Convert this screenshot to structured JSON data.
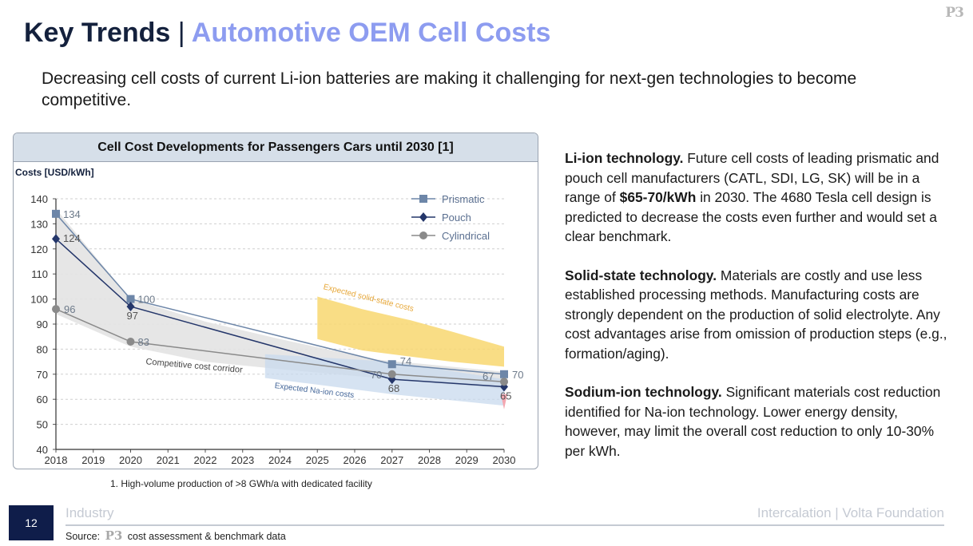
{
  "logo": "P3",
  "header": {
    "title_main": "Key Trends",
    "separator": "|",
    "title_accent": "Automotive OEM Cell Costs",
    "subtitle": "Decreasing cell costs of current Li-ion batteries are making it challenging for next-gen technologies to become competitive."
  },
  "chart_data": {
    "type": "line",
    "title": "Cell Cost Developments for Passengers Cars until 2030 [1]",
    "ylabel": "Costs [USD/kWh]",
    "xlabel": "",
    "ylim": [
      40,
      140
    ],
    "yticks": [
      40,
      50,
      60,
      70,
      80,
      90,
      100,
      110,
      120,
      130,
      140
    ],
    "xticks": [
      2018,
      2019,
      2020,
      2021,
      2022,
      2023,
      2024,
      2025,
      2026,
      2027,
      2028,
      2029,
      2030
    ],
    "grid": true,
    "legend": "top-right",
    "series": [
      {
        "name": "Prismatic",
        "marker": "square",
        "color": "#6d86a8",
        "x": [
          2018,
          2020,
          2027,
          2030
        ],
        "values": [
          134,
          100,
          74,
          70
        ],
        "labels": [
          "134",
          "100",
          "74",
          "70"
        ]
      },
      {
        "name": "Pouch",
        "marker": "diamond",
        "color": "#24366a",
        "x": [
          2018,
          2020,
          2027,
          2030
        ],
        "values": [
          124,
          97,
          68,
          65
        ],
        "labels": [
          "124",
          "97",
          "68",
          "65"
        ]
      },
      {
        "name": "Cylindrical",
        "marker": "circle",
        "color": "#8a8a8a",
        "x": [
          2018,
          2020,
          2027,
          2030
        ],
        "values": [
          96,
          83,
          70,
          67
        ],
        "labels": [
          "96",
          "83",
          "70",
          "67"
        ]
      }
    ],
    "annotations": [
      "Competitive cost corridor",
      "Expected Na-ion costs",
      "Expected solid-state costs"
    ]
  },
  "footnote": "1. High-volume production of >8 GWh/a with dedicated facility",
  "sections": [
    {
      "title": "Li-ion technology.",
      "pre": " Future cell costs of leading prismatic and pouch cell manufacturers (CATL, SDI, LG, SK) will be in a range of ",
      "bold": "$65-70/kWh",
      "post": " in 2030. The 4680 Tesla cell design is predicted to decrease the costs even further and would set a clear benchmark."
    },
    {
      "title": "Solid-state technology.",
      "body": " Materials are costly and use less established processing methods. Manufacturing costs are strongly dependent on the production of solid electrolyte. Any cost advantages arise from omission of production steps (e.g., formation/aging)."
    },
    {
      "title": "Sodium-ion technology.",
      "body": " Significant materials cost reduction identified for Na-ion technology. Lower energy density, however, may limit the overall cost reduction to only 10-30% per kWh."
    }
  ],
  "footer": {
    "page_number": "12",
    "section": "Industry",
    "brand": "Intercalation | Volta Foundation",
    "source_prefix": "Source:",
    "source_logo": "P3",
    "source_text": "cost assessment & benchmark data"
  },
  "colors": {
    "navy": "#14213d",
    "accent": "#8d9cf0",
    "solid_state_band": "#f8d770",
    "na_ion_band": "#c8d9ee",
    "corridor": "#e3e3e3"
  }
}
